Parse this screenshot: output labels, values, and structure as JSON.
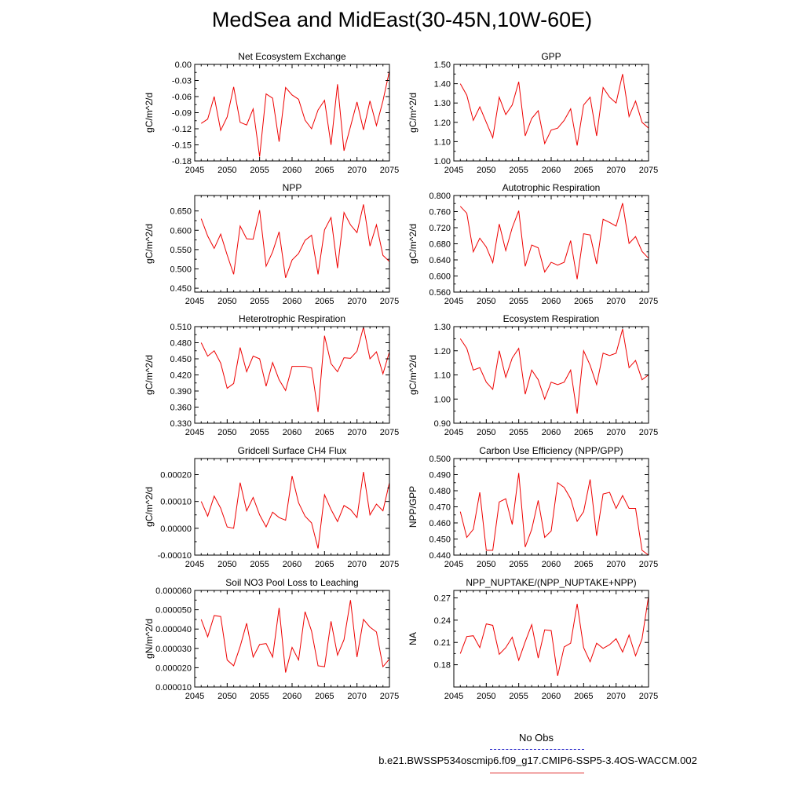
{
  "title": "MedSea and MidEast(30-45N,10W-60E)",
  "legend": {
    "obs_label": "No Obs",
    "case_label": "b.e21.BWSSP534oscmip6.f09_g17.CMIP6-SSP5-3.4OS-WACCM.002",
    "obs_color": "#3333cc",
    "case_color": "#ee0000"
  },
  "chart_data": [
    {
      "type": "line",
      "title": "Net Ecosystem Exchange",
      "ylabel": "gC/m^2/d",
      "xlim": [
        2045,
        2075
      ],
      "ylim": [
        -0.18,
        0.0
      ],
      "xticks": [
        "2045",
        "2050",
        "2055",
        "2060",
        "2065",
        "2070",
        "2075"
      ],
      "yticks": [
        "0.00",
        "-0.03",
        "-0.06",
        "-0.09",
        "-0.12",
        "-0.15",
        "-0.18"
      ],
      "series": [
        {
          "x": [
            2046,
            2047,
            2048,
            2049,
            2050,
            2051,
            2052,
            2053,
            2054,
            2055,
            2056,
            2057,
            2058,
            2059,
            2060,
            2061,
            2062,
            2063,
            2064,
            2065,
            2066,
            2067,
            2068,
            2069,
            2070,
            2071,
            2072,
            2073,
            2074,
            2075
          ],
          "values": [
            -0.11,
            -0.102,
            -0.06,
            -0.123,
            -0.098,
            -0.042,
            -0.108,
            -0.113,
            -0.083,
            -0.172,
            -0.055,
            -0.063,
            -0.144,
            -0.043,
            -0.057,
            -0.065,
            -0.104,
            -0.12,
            -0.085,
            -0.067,
            -0.15,
            -0.037,
            -0.161,
            -0.116,
            -0.07,
            -0.122,
            -0.068,
            -0.114,
            -0.068,
            -0.012
          ]
        }
      ]
    },
    {
      "type": "line",
      "title": "GPP",
      "ylabel": "gC/m^2/d",
      "xlim": [
        2045,
        2075
      ],
      "ylim": [
        1.0,
        1.5
      ],
      "xticks": [
        "2045",
        "2050",
        "2055",
        "2060",
        "2065",
        "2070",
        "2075"
      ],
      "yticks": [
        "1.50",
        "1.40",
        "1.30",
        "1.20",
        "1.10",
        "1.00"
      ],
      "series": [
        {
          "x": [
            2046,
            2047,
            2048,
            2049,
            2050,
            2051,
            2052,
            2053,
            2054,
            2055,
            2056,
            2057,
            2058,
            2059,
            2060,
            2061,
            2062,
            2063,
            2064,
            2065,
            2066,
            2067,
            2068,
            2069,
            2070,
            2071,
            2072,
            2073,
            2074,
            2075
          ],
          "values": [
            1.4,
            1.34,
            1.21,
            1.28,
            1.2,
            1.12,
            1.33,
            1.24,
            1.29,
            1.41,
            1.13,
            1.22,
            1.26,
            1.09,
            1.16,
            1.17,
            1.21,
            1.27,
            1.08,
            1.29,
            1.33,
            1.13,
            1.38,
            1.33,
            1.3,
            1.45,
            1.23,
            1.31,
            1.2,
            1.17
          ]
        }
      ]
    },
    {
      "type": "line",
      "title": "NPP",
      "ylabel": "gC/m^2/d",
      "xlim": [
        2045,
        2075
      ],
      "ylim": [
        0.44,
        0.69
      ],
      "xticks": [
        "2045",
        "2050",
        "2055",
        "2060",
        "2065",
        "2070",
        "2075"
      ],
      "yticks": [
        "0.650",
        "0.600",
        "0.550",
        "0.500",
        "0.450"
      ],
      "series": [
        {
          "x": [
            2046,
            2047,
            2048,
            2049,
            2050,
            2051,
            2052,
            2053,
            2054,
            2055,
            2056,
            2057,
            2058,
            2059,
            2060,
            2061,
            2062,
            2063,
            2064,
            2065,
            2066,
            2067,
            2068,
            2069,
            2070,
            2071,
            2072,
            2073,
            2074,
            2075
          ],
          "values": [
            0.63,
            0.585,
            0.553,
            0.59,
            0.536,
            0.486,
            0.611,
            0.578,
            0.577,
            0.652,
            0.507,
            0.544,
            0.596,
            0.477,
            0.523,
            0.54,
            0.574,
            0.587,
            0.486,
            0.601,
            0.633,
            0.502,
            0.646,
            0.614,
            0.594,
            0.667,
            0.559,
            0.614,
            0.535,
            0.519
          ]
        }
      ]
    },
    {
      "type": "line",
      "title": "Autotrophic Respiration",
      "ylabel": "gC/m^2/d",
      "xlim": [
        2045,
        2075
      ],
      "ylim": [
        0.56,
        0.8
      ],
      "xticks": [
        "2045",
        "2050",
        "2055",
        "2060",
        "2065",
        "2070",
        "2075"
      ],
      "yticks": [
        "0.800",
        "0.760",
        "0.720",
        "0.680",
        "0.640",
        "0.600",
        "0.560"
      ],
      "series": [
        {
          "x": [
            2046,
            2047,
            2048,
            2049,
            2050,
            2051,
            2052,
            2053,
            2054,
            2055,
            2056,
            2057,
            2058,
            2059,
            2060,
            2061,
            2062,
            2063,
            2064,
            2065,
            2066,
            2067,
            2068,
            2069,
            2070,
            2071,
            2072,
            2073,
            2074,
            2075
          ],
          "values": [
            0.773,
            0.756,
            0.66,
            0.694,
            0.672,
            0.633,
            0.729,
            0.663,
            0.72,
            0.762,
            0.624,
            0.677,
            0.67,
            0.61,
            0.634,
            0.627,
            0.634,
            0.688,
            0.592,
            0.705,
            0.702,
            0.63,
            0.741,
            0.733,
            0.724,
            0.781,
            0.681,
            0.698,
            0.661,
            0.644
          ]
        }
      ]
    },
    {
      "type": "line",
      "title": "Heterotrophic Respiration",
      "ylabel": "gC/m^2/d",
      "xlim": [
        2045,
        2075
      ],
      "ylim": [
        0.33,
        0.51
      ],
      "xticks": [
        "2045",
        "2050",
        "2055",
        "2060",
        "2065",
        "2070",
        "2075"
      ],
      "yticks": [
        "0.510",
        "0.480",
        "0.450",
        "0.420",
        "0.390",
        "0.360",
        "0.330"
      ],
      "series": [
        {
          "x": [
            2046,
            2047,
            2048,
            2049,
            2050,
            2051,
            2052,
            2053,
            2054,
            2055,
            2056,
            2057,
            2058,
            2059,
            2060,
            2061,
            2062,
            2063,
            2064,
            2065,
            2066,
            2067,
            2068,
            2069,
            2070,
            2071,
            2072,
            2073,
            2074,
            2075
          ],
          "values": [
            0.48,
            0.455,
            0.465,
            0.442,
            0.395,
            0.404,
            0.471,
            0.426,
            0.455,
            0.45,
            0.399,
            0.443,
            0.411,
            0.391,
            0.436,
            0.436,
            0.436,
            0.433,
            0.351,
            0.493,
            0.441,
            0.426,
            0.452,
            0.451,
            0.464,
            0.509,
            0.45,
            0.463,
            0.422,
            0.463
          ]
        }
      ]
    },
    {
      "type": "line",
      "title": "Ecosystem Respiration",
      "ylabel": "gC/m^2/d",
      "xlim": [
        2045,
        2075
      ],
      "ylim": [
        0.9,
        1.3
      ],
      "xticks": [
        "2045",
        "2050",
        "2055",
        "2060",
        "2065",
        "2070",
        "2075"
      ],
      "yticks": [
        "1.30",
        "1.20",
        "1.10",
        "1.00",
        "0.90"
      ],
      "series": [
        {
          "x": [
            2046,
            2047,
            2048,
            2049,
            2050,
            2051,
            2052,
            2053,
            2054,
            2055,
            2056,
            2057,
            2058,
            2059,
            2060,
            2061,
            2062,
            2063,
            2064,
            2065,
            2066,
            2067,
            2068,
            2069,
            2070,
            2071,
            2072,
            2073,
            2074,
            2075
          ],
          "values": [
            1.25,
            1.21,
            1.12,
            1.13,
            1.07,
            1.04,
            1.2,
            1.09,
            1.17,
            1.21,
            1.02,
            1.12,
            1.08,
            1.0,
            1.07,
            1.06,
            1.07,
            1.12,
            0.94,
            1.2,
            1.14,
            1.06,
            1.19,
            1.18,
            1.19,
            1.29,
            1.13,
            1.16,
            1.08,
            1.1
          ]
        }
      ]
    },
    {
      "type": "line",
      "title": "Gridcell Surface CH4 Flux",
      "ylabel": "gC/m^2/d",
      "xlim": [
        2045,
        2075
      ],
      "ylim": [
        -0.0001,
        0.00026
      ],
      "xticks": [
        "2045",
        "2050",
        "2055",
        "2060",
        "2065",
        "2070",
        "2075"
      ],
      "yticks": [
        "0.00020",
        "0.00010",
        "0.00000",
        "-0.00010"
      ],
      "series": [
        {
          "x": [
            2046,
            2047,
            2048,
            2049,
            2050,
            2051,
            2052,
            2053,
            2054,
            2055,
            2056,
            2057,
            2058,
            2059,
            2060,
            2061,
            2062,
            2063,
            2064,
            2065,
            2066,
            2067,
            2068,
            2069,
            2070,
            2071,
            2072,
            2073,
            2074,
            2075
          ],
          "values": [
            0.0001,
            4.5e-05,
            0.00012,
            7.5e-05,
            5e-06,
            0.0,
            0.00017,
            6.5e-05,
            0.000115,
            5e-05,
            5e-06,
            6e-05,
            4e-05,
            3e-05,
            0.000195,
            9.5e-05,
            4.5e-05,
            2e-05,
            -7.5e-05,
            0.000125,
            7e-05,
            2.5e-05,
            8.5e-05,
            7e-05,
            4e-05,
            0.00021,
            5e-05,
            9e-05,
            6.5e-05,
            0.00017
          ]
        }
      ]
    },
    {
      "type": "line",
      "title": "Carbon Use Efficiency (NPP/GPP)",
      "ylabel": "NPP/GPP",
      "xlim": [
        2045,
        2075
      ],
      "ylim": [
        0.44,
        0.5
      ],
      "xticks": [
        "2045",
        "2050",
        "2055",
        "2060",
        "2065",
        "2070",
        "2075"
      ],
      "yticks": [
        "0.500",
        "0.490",
        "0.480",
        "0.470",
        "0.460",
        "0.450",
        "0.440"
      ],
      "series": [
        {
          "x": [
            2046,
            2047,
            2048,
            2049,
            2050,
            2051,
            2052,
            2053,
            2054,
            2055,
            2056,
            2057,
            2058,
            2059,
            2060,
            2061,
            2062,
            2063,
            2064,
            2065,
            2066,
            2067,
            2068,
            2069,
            2070,
            2071,
            2072,
            2073,
            2074,
            2075
          ],
          "values": [
            0.467,
            0.451,
            0.456,
            0.479,
            0.443,
            0.443,
            0.473,
            0.475,
            0.459,
            0.491,
            0.445,
            0.456,
            0.474,
            0.451,
            0.455,
            0.485,
            0.482,
            0.475,
            0.461,
            0.467,
            0.487,
            0.452,
            0.478,
            0.479,
            0.469,
            0.477,
            0.469,
            0.469,
            0.443,
            0.44
          ]
        }
      ]
    },
    {
      "type": "line",
      "title": "Soil NO3 Pool Loss to Leaching",
      "ylabel": "gN/m^2/d",
      "xlim": [
        2045,
        2075
      ],
      "ylim": [
        1e-05,
        6e-05
      ],
      "xticks": [
        "2045",
        "2050",
        "2055",
        "2060",
        "2065",
        "2070",
        "2075"
      ],
      "yticks": [
        "0.000060",
        "0.000050",
        "0.000040",
        "0.000030",
        "0.000020",
        "0.000010"
      ],
      "series": [
        {
          "x": [
            2046,
            2047,
            2048,
            2049,
            2050,
            2051,
            2052,
            2053,
            2054,
            2055,
            2056,
            2057,
            2058,
            2059,
            2060,
            2061,
            2062,
            2063,
            2064,
            2065,
            2066,
            2067,
            2068,
            2069,
            2070,
            2071,
            2072,
            2073,
            2074,
            2075
          ],
          "values": [
            4.5e-05,
            3.6e-05,
            4.7e-05,
            4.65e-05,
            2.4e-05,
            2.1e-05,
            3.1e-05,
            4.3e-05,
            2.55e-05,
            3.2e-05,
            3.25e-05,
            2.55e-05,
            5.1e-05,
            1.75e-05,
            3.05e-05,
            2.4e-05,
            4.9e-05,
            3.9e-05,
            2.1e-05,
            2.05e-05,
            4.4e-05,
            2.65e-05,
            3.45e-05,
            5.5e-05,
            2.55e-05,
            4.5e-05,
            4.1e-05,
            3.85e-05,
            2.05e-05,
            2.45e-05
          ]
        }
      ]
    },
    {
      "type": "line",
      "title": "NPP_NUPTAKE/(NPP_NUPTAKE+NPP)",
      "ylabel": "NA",
      "xlim": [
        2045,
        2075
      ],
      "ylim": [
        0.15,
        0.28
      ],
      "xticks": [
        "2045",
        "2050",
        "2055",
        "2060",
        "2065",
        "2070",
        "2075"
      ],
      "yticks": [
        "0.27",
        "0.24",
        "0.21",
        "0.18"
      ],
      "series": [
        {
          "x": [
            2046,
            2047,
            2048,
            2049,
            2050,
            2051,
            2052,
            2053,
            2054,
            2055,
            2056,
            2057,
            2058,
            2059,
            2060,
            2061,
            2062,
            2063,
            2064,
            2065,
            2066,
            2067,
            2068,
            2069,
            2070,
            2071,
            2072,
            2073,
            2074,
            2075
          ],
          "values": [
            0.195,
            0.218,
            0.219,
            0.203,
            0.235,
            0.233,
            0.194,
            0.203,
            0.217,
            0.186,
            0.211,
            0.234,
            0.189,
            0.227,
            0.226,
            0.165,
            0.204,
            0.209,
            0.262,
            0.203,
            0.184,
            0.209,
            0.202,
            0.207,
            0.215,
            0.197,
            0.22,
            0.192,
            0.215,
            0.272
          ]
        }
      ]
    }
  ]
}
